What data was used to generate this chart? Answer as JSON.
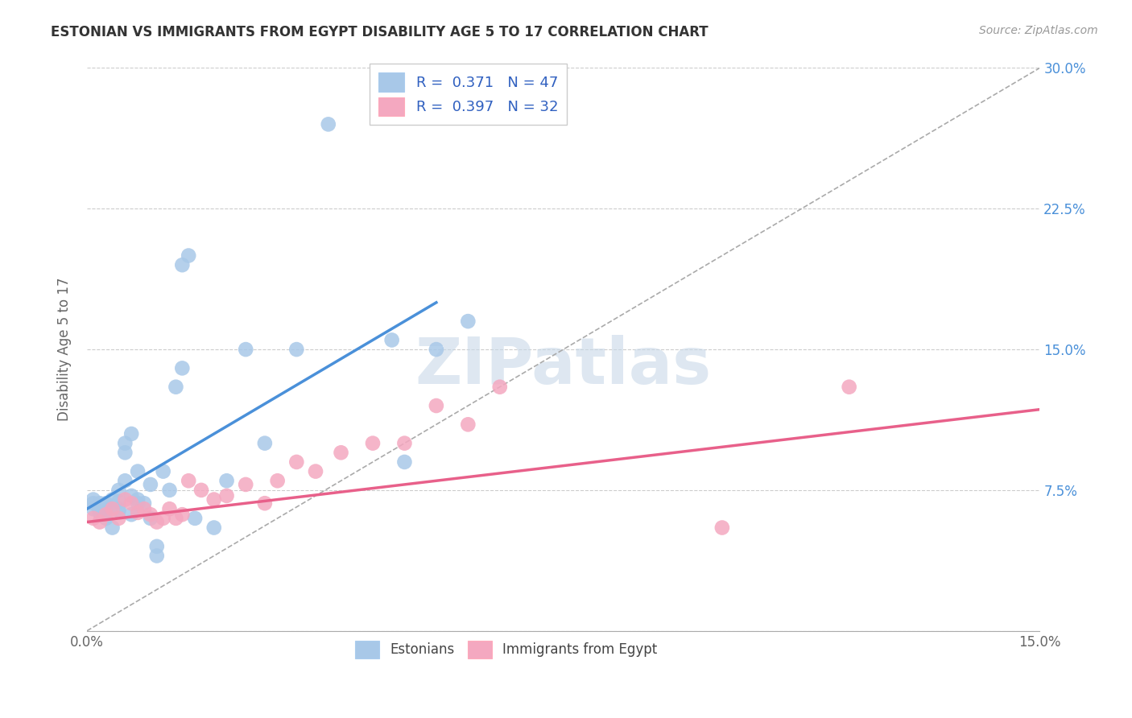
{
  "title": "ESTONIAN VS IMMIGRANTS FROM EGYPT DISABILITY AGE 5 TO 17 CORRELATION CHART",
  "source": "Source: ZipAtlas.com",
  "ylabel": "Disability Age 5 to 17",
  "xlim": [
    0.0,
    0.15
  ],
  "ylim": [
    0.0,
    0.3
  ],
  "xticks": [
    0.0,
    0.015,
    0.03,
    0.045,
    0.06,
    0.075,
    0.09,
    0.105,
    0.12,
    0.135,
    0.15
  ],
  "xticklabels_show": [
    true,
    false,
    false,
    false,
    false,
    false,
    false,
    false,
    false,
    false,
    true
  ],
  "xticklabels": [
    "0.0%",
    "",
    "",
    "",
    "",
    "",
    "",
    "",
    "",
    "",
    "15.0%"
  ],
  "yticks_right": [
    0.0,
    0.075,
    0.15,
    0.225,
    0.3
  ],
  "ytick_right_labels": [
    "",
    "7.5%",
    "15.0%",
    "22.5%",
    "30.0%"
  ],
  "blue_color": "#4a90d9",
  "pink_color": "#e8608a",
  "blue_scatter_color": "#a8c8e8",
  "pink_scatter_color": "#f4a8c0",
  "blue_R": 0.371,
  "blue_N": 47,
  "pink_R": 0.397,
  "pink_N": 32,
  "blue_line_x": [
    0.0,
    0.055
  ],
  "blue_line_y": [
    0.065,
    0.175
  ],
  "pink_line_x": [
    0.0,
    0.15
  ],
  "pink_line_y": [
    0.058,
    0.118
  ],
  "diag_line_x": [
    0.0,
    0.15
  ],
  "diag_line_y": [
    0.0,
    0.3
  ],
  "blue_points_x": [
    0.001,
    0.001,
    0.001,
    0.002,
    0.002,
    0.002,
    0.003,
    0.003,
    0.003,
    0.003,
    0.004,
    0.004,
    0.005,
    0.005,
    0.005,
    0.005,
    0.006,
    0.006,
    0.006,
    0.007,
    0.007,
    0.007,
    0.008,
    0.008,
    0.008,
    0.009,
    0.01,
    0.01,
    0.011,
    0.011,
    0.012,
    0.013,
    0.014,
    0.015,
    0.015,
    0.016,
    0.017,
    0.02,
    0.022,
    0.025,
    0.028,
    0.033,
    0.038,
    0.048,
    0.05,
    0.055,
    0.06
  ],
  "blue_points_y": [
    0.065,
    0.068,
    0.07,
    0.065,
    0.063,
    0.068,
    0.06,
    0.063,
    0.067,
    0.068,
    0.055,
    0.07,
    0.065,
    0.069,
    0.075,
    0.064,
    0.08,
    0.095,
    0.1,
    0.062,
    0.072,
    0.105,
    0.068,
    0.07,
    0.085,
    0.068,
    0.078,
    0.06,
    0.045,
    0.04,
    0.085,
    0.075,
    0.13,
    0.14,
    0.195,
    0.2,
    0.06,
    0.055,
    0.08,
    0.15,
    0.1,
    0.15,
    0.27,
    0.155,
    0.09,
    0.15,
    0.165
  ],
  "pink_points_x": [
    0.001,
    0.002,
    0.003,
    0.004,
    0.005,
    0.006,
    0.007,
    0.008,
    0.009,
    0.01,
    0.011,
    0.012,
    0.013,
    0.014,
    0.015,
    0.016,
    0.018,
    0.02,
    0.022,
    0.025,
    0.028,
    0.03,
    0.033,
    0.036,
    0.04,
    0.045,
    0.05,
    0.055,
    0.06,
    0.065,
    0.1,
    0.12
  ],
  "pink_points_y": [
    0.06,
    0.058,
    0.062,
    0.065,
    0.06,
    0.07,
    0.068,
    0.063,
    0.065,
    0.062,
    0.058,
    0.06,
    0.065,
    0.06,
    0.062,
    0.08,
    0.075,
    0.07,
    0.072,
    0.078,
    0.068,
    0.08,
    0.09,
    0.085,
    0.095,
    0.1,
    0.1,
    0.12,
    0.11,
    0.13,
    0.055,
    0.13
  ],
  "watermark_text": "ZIPatlas",
  "watermark_color": "#c8d8e8",
  "background_color": "#ffffff",
  "grid_color": "#cccccc",
  "legend_top_text_color": "#3060c0",
  "legend_top_n_color": "#e03060"
}
